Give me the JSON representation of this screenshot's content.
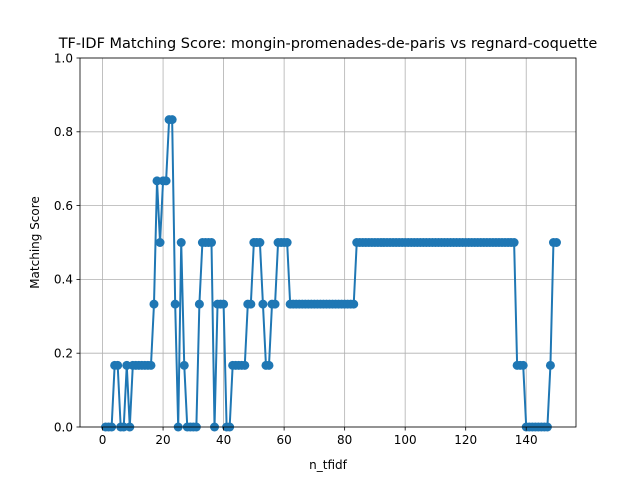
{
  "chart_data": {
    "type": "line",
    "title": "TF-IDF Matching Score: mongin-promenades-de-paris vs regnard-coquette",
    "xlabel": "n_tfidf",
    "ylabel": "Matching Score",
    "xlim": [
      -7.45,
      156.45
    ],
    "ylim": [
      0.0,
      1.0
    ],
    "xticks": [
      0,
      20,
      40,
      60,
      80,
      100,
      120,
      140
    ],
    "yticks": [
      0.0,
      0.2,
      0.4,
      0.6,
      0.8,
      1.0
    ],
    "xtick_labels": [
      "0",
      "20",
      "40",
      "60",
      "80",
      "100",
      "120",
      "140"
    ],
    "ytick_labels": [
      "0.0",
      "0.2",
      "0.4",
      "0.6",
      "0.8",
      "1.0"
    ],
    "grid": true,
    "marker": "circle",
    "color": "#1f77b4",
    "series": [
      {
        "x": [
          1,
          2,
          3,
          4,
          5,
          6,
          7,
          8,
          9,
          10,
          11,
          12,
          13,
          14,
          15,
          16,
          17,
          18,
          19,
          20,
          21,
          22,
          23,
          24,
          25,
          26,
          27,
          28,
          29,
          30,
          31,
          32,
          33,
          34,
          35,
          36,
          37,
          38,
          39,
          40,
          41,
          42,
          43,
          44,
          45,
          46,
          47,
          48,
          49,
          50,
          51,
          52,
          53,
          54,
          55,
          56,
          57,
          58,
          59,
          60,
          61,
          62,
          63,
          64,
          65,
          66,
          67,
          68,
          69,
          70,
          71,
          72,
          73,
          74,
          75,
          76,
          77,
          78,
          79,
          80,
          81,
          82,
          83,
          84,
          85,
          86,
          87,
          88,
          89,
          90,
          91,
          92,
          93,
          94,
          95,
          96,
          97,
          98,
          99,
          100,
          101,
          102,
          103,
          104,
          105,
          106,
          107,
          108,
          109,
          110,
          111,
          112,
          113,
          114,
          115,
          116,
          117,
          118,
          119,
          120,
          121,
          122,
          123,
          124,
          125,
          126,
          127,
          128,
          129,
          130,
          131,
          132,
          133,
          134,
          135,
          136,
          137,
          138,
          139,
          140,
          141,
          142,
          143,
          144,
          145,
          146,
          147,
          148,
          149,
          150
        ],
        "y": [
          0,
          0,
          0,
          0.167,
          0.167,
          0,
          0,
          0.167,
          0,
          0.167,
          0.167,
          0.167,
          0.167,
          0.167,
          0.167,
          0.167,
          0.333,
          0.667,
          0.5,
          0.667,
          0.667,
          0.833,
          0.833,
          0.333,
          0,
          0.5,
          0.167,
          0,
          0,
          0,
          0,
          0.333,
          0.5,
          0.5,
          0.5,
          0.5,
          0,
          0.333,
          0.333,
          0.333,
          0,
          0,
          0.167,
          0.167,
          0.167,
          0.167,
          0.167,
          0.333,
          0.333,
          0.5,
          0.5,
          0.5,
          0.333,
          0.167,
          0.167,
          0.333,
          0.333,
          0.5,
          0.5,
          0.5,
          0.5,
          0.333,
          0.333,
          0.333,
          0.333,
          0.333,
          0.333,
          0.333,
          0.333,
          0.333,
          0.333,
          0.333,
          0.333,
          0.333,
          0.333,
          0.333,
          0.333,
          0.333,
          0.333,
          0.333,
          0.333,
          0.333,
          0.333,
          0.5,
          0.5,
          0.5,
          0.5,
          0.5,
          0.5,
          0.5,
          0.5,
          0.5,
          0.5,
          0.5,
          0.5,
          0.5,
          0.5,
          0.5,
          0.5,
          0.5,
          0.5,
          0.5,
          0.5,
          0.5,
          0.5,
          0.5,
          0.5,
          0.5,
          0.5,
          0.5,
          0.5,
          0.5,
          0.5,
          0.5,
          0.5,
          0.5,
          0.5,
          0.5,
          0.5,
          0.5,
          0.5,
          0.5,
          0.5,
          0.5,
          0.5,
          0.5,
          0.5,
          0.5,
          0.5,
          0.5,
          0.5,
          0.5,
          0.5,
          0.5,
          0.5,
          0.5,
          0.167,
          0.167,
          0.167,
          0,
          0,
          0,
          0,
          0,
          0,
          0,
          0,
          0.167,
          0.5,
          0.5
        ]
      }
    ]
  }
}
